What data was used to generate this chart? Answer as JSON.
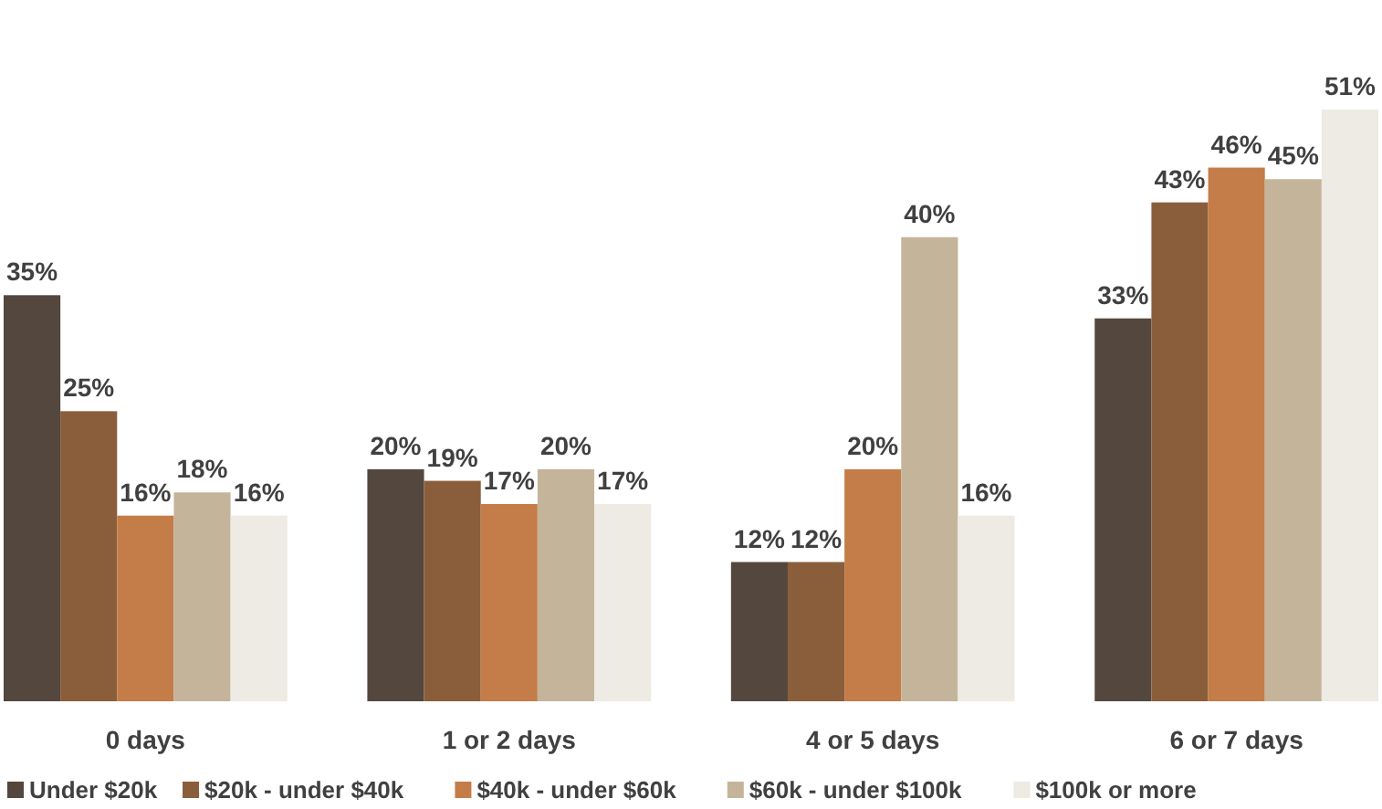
{
  "chart_data": {
    "type": "bar",
    "categories": [
      "0 days",
      "1 or 2 days",
      "4 or 5 days",
      "6 or 7 days"
    ],
    "legend": "bottom",
    "series": [
      {
        "name": "Under $20k",
        "color": "#54473d",
        "values": [
          35,
          20,
          12,
          33
        ],
        "value_labels": [
          "35%",
          "20%",
          "12%",
          "33%"
        ]
      },
      {
        "name": "$20k - under $40k",
        "color": "#8b5e3b",
        "values": [
          25,
          19,
          12,
          43
        ],
        "value_labels": [
          "25%",
          "19%",
          "12%",
          "43%"
        ]
      },
      {
        "name": "$40k - under $60k",
        "color": "#c47c48",
        "values": [
          16,
          17,
          20,
          46
        ],
        "value_labels": [
          "16%",
          "17%",
          "20%",
          "46%"
        ]
      },
      {
        "name": "$60k - under $100k",
        "color": "#c4b49a",
        "values": [
          18,
          20,
          40,
          45
        ],
        "value_labels": [
          "18%",
          "20%",
          "40%",
          "45%"
        ]
      },
      {
        "name": "$100k or more",
        "color": "#eeeae4",
        "values": [
          16,
          17,
          16,
          51
        ],
        "value_labels": [
          "16%",
          "17%",
          "16%",
          "51%"
        ]
      }
    ]
  }
}
